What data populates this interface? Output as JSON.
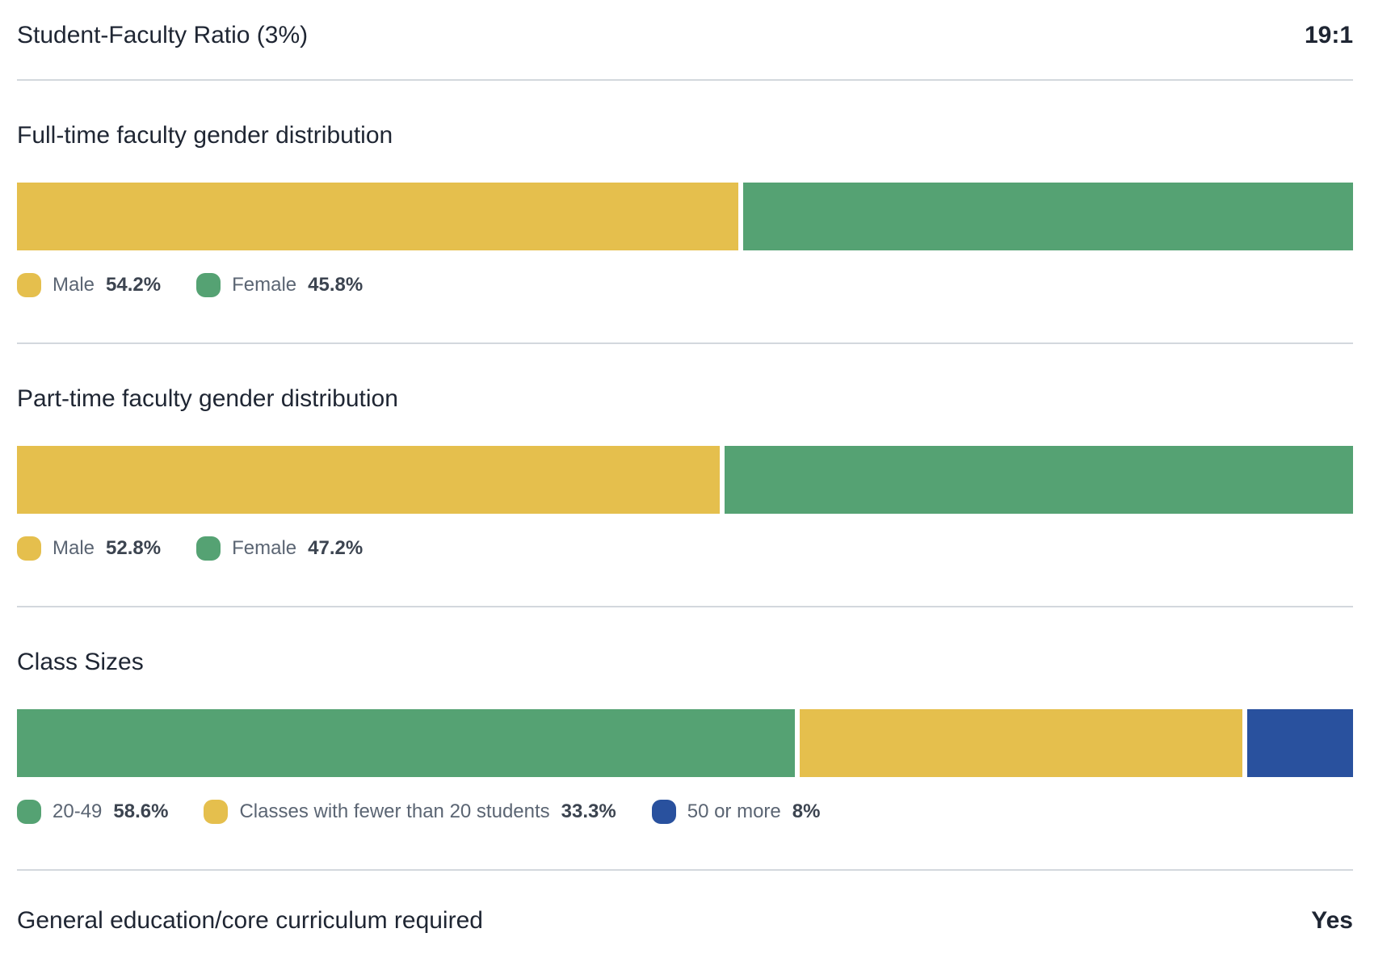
{
  "stats": {
    "student_faculty": {
      "label": "Student-Faculty Ratio (3%)",
      "value": "19:1"
    },
    "gen_ed": {
      "label": "General education/core curriculum required",
      "value": "Yes"
    }
  },
  "colors": {
    "male_yellow": "#e5bf4d",
    "female_green": "#55a273",
    "blue": "#29519e",
    "divider": "#d3d8dd"
  },
  "chart_data": [
    {
      "type": "bar",
      "stacked": true,
      "orientation": "horizontal",
      "title": "Full-time faculty gender distribution",
      "xlim": [
        0,
        100
      ],
      "legend_position": "bottom",
      "segments": [
        {
          "label": "Male",
          "value": 54.2,
          "value_label": "54.2%",
          "color": "#e5bf4d"
        },
        {
          "label": "Female",
          "value": 45.8,
          "value_label": "45.8%",
          "color": "#55a273"
        }
      ]
    },
    {
      "type": "bar",
      "stacked": true,
      "orientation": "horizontal",
      "title": "Part-time faculty gender distribution",
      "xlim": [
        0,
        100
      ],
      "legend_position": "bottom",
      "segments": [
        {
          "label": "Male",
          "value": 52.8,
          "value_label": "52.8%",
          "color": "#e5bf4d"
        },
        {
          "label": "Female",
          "value": 47.2,
          "value_label": "47.2%",
          "color": "#55a273"
        }
      ]
    },
    {
      "type": "bar",
      "stacked": true,
      "orientation": "horizontal",
      "title": "Class Sizes",
      "xlim": [
        0,
        100
      ],
      "legend_position": "bottom",
      "segments": [
        {
          "label": "20-49",
          "value": 58.6,
          "value_label": "58.6%",
          "color": "#55a273"
        },
        {
          "label": "Classes with fewer than 20 students",
          "value": 33.3,
          "value_label": "33.3%",
          "color": "#e5bf4d"
        },
        {
          "label": "50 or more",
          "value": 8,
          "value_label": "8%",
          "color": "#29519e"
        }
      ]
    }
  ]
}
